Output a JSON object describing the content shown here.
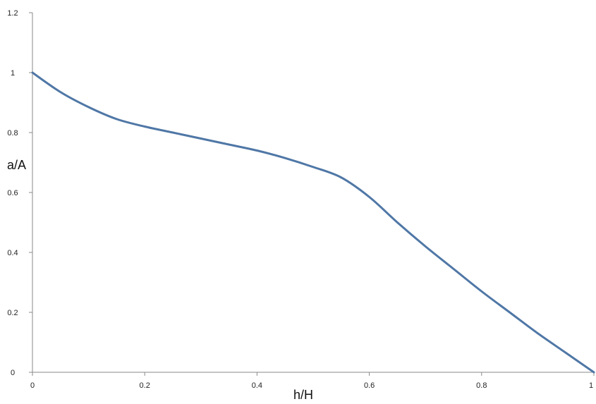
{
  "chart_data": {
    "type": "line",
    "xlabel": "h/H",
    "ylabel": "a/A",
    "xlim": [
      0,
      1
    ],
    "ylim": [
      0,
      1.2
    ],
    "x_ticks": [
      "0",
      "0.2",
      "0.4",
      "0.6",
      "0.8",
      "1"
    ],
    "y_ticks": [
      "0",
      "0.2",
      "0.4",
      "0.6",
      "0.8",
      "1",
      "1.2"
    ],
    "grid": false,
    "series": [
      {
        "color": "#4f77a6",
        "x": [
          0,
          0.05,
          0.1,
          0.15,
          0.2,
          0.25,
          0.3,
          0.35,
          0.4,
          0.45,
          0.5,
          0.55,
          0.6,
          0.65,
          0.7,
          0.75,
          0.8,
          0.85,
          0.9,
          0.95,
          1.0
        ],
        "y": [
          1.0,
          0.935,
          0.885,
          0.845,
          0.82,
          0.8,
          0.78,
          0.76,
          0.74,
          0.715,
          0.685,
          0.65,
          0.585,
          0.5,
          0.42,
          0.345,
          0.27,
          0.2,
          0.13,
          0.065,
          0.0
        ]
      }
    ]
  }
}
